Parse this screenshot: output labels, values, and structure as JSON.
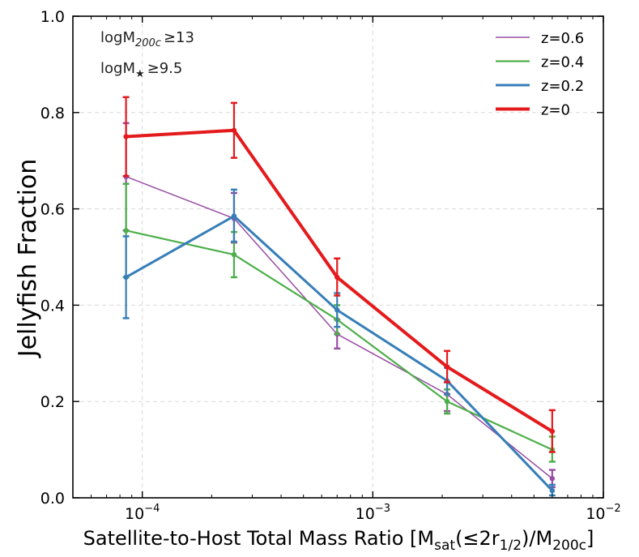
{
  "chart_data": {
    "type": "line",
    "xscale": "log",
    "xlim": [
      5e-05,
      0.01
    ],
    "ylim": [
      0.0,
      1.0
    ],
    "xlabel": {
      "pre": "Satellite-to-Host Total Mass Ratio [M",
      "sub1": "sat",
      "mid": "(≤2r",
      "sub2": "1/2",
      "mid2": ")/M",
      "sub3": "200c",
      "post": "]"
    },
    "ylabel": "Jellyfish Fraction",
    "grid": true,
    "legend_position": "top-right",
    "x_ticks": [
      {
        "value": 0.0001,
        "base": "10",
        "exp": "−4"
      },
      {
        "value": 0.001,
        "base": "10",
        "exp": "−3"
      },
      {
        "value": 0.01,
        "base": "10",
        "exp": "−2"
      }
    ],
    "y_ticks": [
      {
        "value": 0.0,
        "label": "0.0"
      },
      {
        "value": 0.2,
        "label": "0.2"
      },
      {
        "value": 0.4,
        "label": "0.4"
      },
      {
        "value": 0.6,
        "label": "0.6"
      },
      {
        "value": 0.8,
        "label": "0.8"
      },
      {
        "value": 1.0,
        "label": "1.0"
      }
    ],
    "annotations": [
      {
        "pre": "logM",
        "sub": "200c",
        "post": "≥13"
      },
      {
        "pre": "logM",
        "sub": "★",
        "post": "≥9.5"
      }
    ],
    "x": [
      8.5e-05,
      0.00025,
      0.0007,
      0.0021,
      0.006
    ],
    "series": [
      {
        "name": "z=0.6",
        "color": "#984ea3",
        "width": "thin",
        "values": [
          0.667,
          0.58,
          0.34,
          0.215,
          0.04
        ],
        "err_low": [
          0.555,
          0.53,
          0.31,
          0.18,
          0.022
        ],
        "err_high": [
          0.778,
          0.633,
          0.37,
          0.24,
          0.058
        ]
      },
      {
        "name": "z=0.4",
        "color": "#4daf4a",
        "width": "medium",
        "values": [
          0.555,
          0.505,
          0.37,
          0.2,
          0.1
        ],
        "err_low": [
          0.458,
          0.458,
          0.34,
          0.175,
          0.075
        ],
        "err_high": [
          0.652,
          0.552,
          0.4,
          0.225,
          0.127
        ]
      },
      {
        "name": "z=0.2",
        "color": "#377eb8",
        "width": "thick",
        "values": [
          0.458,
          0.585,
          0.39,
          0.243,
          0.015
        ],
        "err_low": [
          0.373,
          0.532,
          0.355,
          0.215,
          0.005
        ],
        "err_high": [
          0.543,
          0.64,
          0.425,
          0.27,
          0.027
        ]
      },
      {
        "name": "z=0",
        "color": "#e41a1c",
        "width": "thickest",
        "values": [
          0.75,
          0.763,
          0.458,
          0.272,
          0.138
        ],
        "err_low": [
          0.668,
          0.706,
          0.42,
          0.24,
          0.095
        ],
        "err_high": [
          0.832,
          0.82,
          0.497,
          0.305,
          0.182
        ]
      }
    ]
  }
}
